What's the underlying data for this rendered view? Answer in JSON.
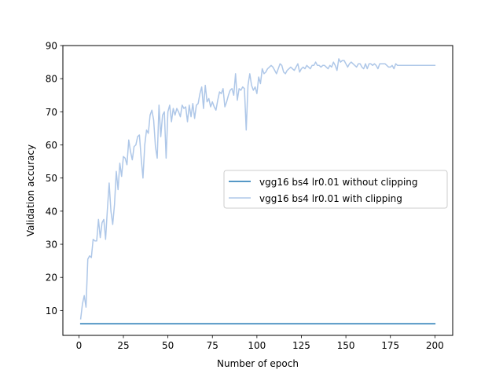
{
  "chart_data": {
    "type": "line",
    "title": "",
    "xlabel": "Number of epoch",
    "ylabel": "Validation accuracy",
    "xlim": [
      -9,
      210
    ],
    "ylim": [
      2.5,
      90
    ],
    "xticks": [
      0,
      25,
      50,
      75,
      100,
      125,
      150,
      175,
      200
    ],
    "yticks": [
      10,
      20,
      30,
      40,
      50,
      60,
      70,
      80,
      90
    ],
    "grid": false,
    "legend_position": "center-right",
    "series": [
      {
        "name": "vgg16 bs4 lr0.01 without clipping",
        "color": "#1f77b4",
        "points": [
          [
            1,
            6.0
          ],
          [
            200,
            6.0
          ]
        ]
      },
      {
        "name": "vgg16 bs4 lr0.01 with clipping",
        "color": "#aec7e8",
        "points": [
          [
            1,
            7.5
          ],
          [
            2,
            12.0
          ],
          [
            3,
            14.5
          ],
          [
            4,
            11.0
          ],
          [
            5,
            25.5
          ],
          [
            6,
            26.5
          ],
          [
            7,
            26.0
          ],
          [
            8,
            31.5
          ],
          [
            9,
            31.0
          ],
          [
            10,
            31.0
          ],
          [
            11,
            37.5
          ],
          [
            12,
            32.0
          ],
          [
            13,
            36.5
          ],
          [
            14,
            37.5
          ],
          [
            15,
            31.5
          ],
          [
            16,
            40.5
          ],
          [
            17,
            48.5
          ],
          [
            18,
            40.0
          ],
          [
            19,
            36.0
          ],
          [
            20,
            42.0
          ],
          [
            21,
            52.0
          ],
          [
            22,
            46.5
          ],
          [
            23,
            54.5
          ],
          [
            24,
            50.5
          ],
          [
            25,
            56.5
          ],
          [
            26,
            56.0
          ],
          [
            27,
            54.0
          ],
          [
            28,
            61.5
          ],
          [
            29,
            58.0
          ],
          [
            30,
            55.5
          ],
          [
            31,
            59.5
          ],
          [
            32,
            60.0
          ],
          [
            33,
            62.5
          ],
          [
            34,
            63.0
          ],
          [
            35,
            56.0
          ],
          [
            36,
            50.0
          ],
          [
            37,
            60.0
          ],
          [
            38,
            64.5
          ],
          [
            39,
            63.5
          ],
          [
            40,
            69.0
          ],
          [
            41,
            70.5
          ],
          [
            42,
            67.5
          ],
          [
            43,
            59.5
          ],
          [
            44,
            56.0
          ],
          [
            45,
            72.0
          ],
          [
            46,
            62.5
          ],
          [
            47,
            69.0
          ],
          [
            48,
            70.0
          ],
          [
            49,
            56.0
          ],
          [
            50,
            70.0
          ],
          [
            51,
            72.0
          ],
          [
            52,
            67.0
          ],
          [
            53,
            71.0
          ],
          [
            54,
            69.0
          ],
          [
            55,
            71.0
          ],
          [
            56,
            70.0
          ],
          [
            57,
            68.5
          ],
          [
            58,
            72.0
          ],
          [
            59,
            71.0
          ],
          [
            60,
            71.5
          ],
          [
            61,
            67.0
          ],
          [
            62,
            72.0
          ],
          [
            63,
            68.5
          ],
          [
            64,
            72.5
          ],
          [
            65,
            68.0
          ],
          [
            66,
            72.0
          ],
          [
            67,
            72.5
          ],
          [
            68,
            75.5
          ],
          [
            69,
            77.5
          ],
          [
            70,
            71.0
          ],
          [
            71,
            78.0
          ],
          [
            72,
            73.0
          ],
          [
            73,
            74.0
          ],
          [
            74,
            71.5
          ],
          [
            75,
            73.0
          ],
          [
            76,
            71.5
          ],
          [
            77,
            70.5
          ],
          [
            78,
            73.5
          ],
          [
            79,
            76.0
          ],
          [
            80,
            75.5
          ],
          [
            81,
            77.0
          ],
          [
            82,
            71.5
          ],
          [
            83,
            73.0
          ],
          [
            84,
            75.0
          ],
          [
            85,
            76.5
          ],
          [
            86,
            77.0
          ],
          [
            87,
            75.0
          ],
          [
            88,
            81.5
          ],
          [
            89,
            73.5
          ],
          [
            90,
            77.0
          ],
          [
            91,
            76.5
          ],
          [
            92,
            77.5
          ],
          [
            93,
            77.0
          ],
          [
            94,
            64.5
          ],
          [
            95,
            78.0
          ],
          [
            96,
            81.5
          ],
          [
            97,
            78.0
          ],
          [
            98,
            76.5
          ],
          [
            99,
            77.5
          ],
          [
            100,
            75.5
          ],
          [
            101,
            80.5
          ],
          [
            102,
            78.5
          ],
          [
            103,
            83.0
          ],
          [
            104,
            81.5
          ],
          [
            105,
            82.0
          ],
          [
            106,
            83.0
          ],
          [
            107,
            83.5
          ],
          [
            108,
            84.0
          ],
          [
            109,
            83.5
          ],
          [
            110,
            82.5
          ],
          [
            111,
            81.5
          ],
          [
            112,
            83.0
          ],
          [
            113,
            84.5
          ],
          [
            114,
            84.0
          ],
          [
            115,
            82.0
          ],
          [
            116,
            81.5
          ],
          [
            117,
            82.5
          ],
          [
            118,
            83.0
          ],
          [
            119,
            83.5
          ],
          [
            120,
            83.0
          ],
          [
            121,
            82.5
          ],
          [
            122,
            83.5
          ],
          [
            123,
            84.5
          ],
          [
            124,
            82.0
          ],
          [
            125,
            83.0
          ],
          [
            126,
            83.5
          ],
          [
            127,
            83.0
          ],
          [
            128,
            84.0
          ],
          [
            129,
            83.5
          ],
          [
            130,
            83.0
          ],
          [
            131,
            84.0
          ],
          [
            132,
            84.0
          ],
          [
            133,
            85.0
          ],
          [
            134,
            84.0
          ],
          [
            135,
            84.0
          ],
          [
            136,
            83.5
          ],
          [
            137,
            84.0
          ],
          [
            138,
            84.0
          ],
          [
            139,
            83.5
          ],
          [
            140,
            83.0
          ],
          [
            141,
            84.0
          ],
          [
            142,
            83.5
          ],
          [
            143,
            85.0
          ],
          [
            144,
            84.0
          ],
          [
            145,
            82.5
          ],
          [
            146,
            86.0
          ],
          [
            147,
            85.0
          ],
          [
            148,
            85.5
          ],
          [
            149,
            85.5
          ],
          [
            150,
            84.5
          ],
          [
            151,
            83.5
          ],
          [
            152,
            84.5
          ],
          [
            153,
            85.0
          ],
          [
            154,
            84.5
          ],
          [
            155,
            84.0
          ],
          [
            156,
            83.5
          ],
          [
            157,
            84.5
          ],
          [
            158,
            84.5
          ],
          [
            159,
            83.5
          ],
          [
            160,
            83.0
          ],
          [
            161,
            84.5
          ],
          [
            162,
            83.0
          ],
          [
            163,
            84.5
          ],
          [
            164,
            84.5
          ],
          [
            165,
            84.0
          ],
          [
            166,
            84.5
          ],
          [
            167,
            84.0
          ],
          [
            168,
            83.0
          ],
          [
            169,
            84.5
          ],
          [
            170,
            84.5
          ],
          [
            171,
            84.5
          ],
          [
            172,
            84.5
          ],
          [
            173,
            84.0
          ],
          [
            174,
            83.5
          ],
          [
            175,
            83.5
          ],
          [
            176,
            84.0
          ],
          [
            177,
            83.0
          ],
          [
            178,
            84.5
          ],
          [
            179,
            84.0
          ],
          [
            180,
            84.0
          ],
          [
            185,
            84.0
          ],
          [
            190,
            84.0
          ],
          [
            195,
            84.0
          ],
          [
            200,
            84.0
          ]
        ]
      }
    ]
  }
}
